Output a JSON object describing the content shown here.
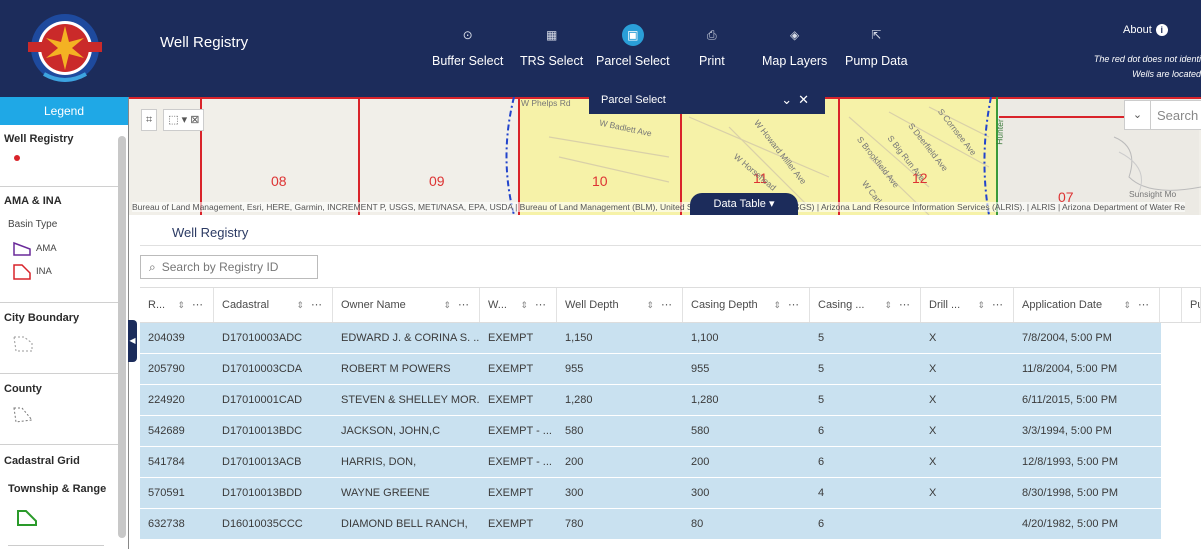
{
  "header": {
    "title": "Well Registry",
    "tools": [
      {
        "label": "Buffer Select",
        "icon": "buffer-icon",
        "glyph": "⊙"
      },
      {
        "label": "TRS Select",
        "icon": "grid-icon",
        "glyph": "▦"
      },
      {
        "label": "Parcel Select",
        "icon": "parcel-icon",
        "glyph": "▣",
        "active": true
      },
      {
        "label": "Print",
        "icon": "print-icon",
        "glyph": "⎙"
      },
      {
        "label": "Map Layers",
        "icon": "layers-icon",
        "glyph": "◈"
      },
      {
        "label": "Pump Data",
        "icon": "export-icon",
        "glyph": "⇱"
      }
    ],
    "about": "About",
    "note_line1": "The red dot does not identi",
    "note_line2": "Wells are located"
  },
  "sidebar": {
    "legend_label": "Legend",
    "sections": {
      "well_registry": "Well Registry",
      "ama_ina": "AMA & INA",
      "basin_type": "Basin Type",
      "ama": "AMA",
      "ina": "INA",
      "city_boundary": "City Boundary",
      "county": "County",
      "cadastral_grid": "Cadastral Grid",
      "township_range": "Township & Range"
    }
  },
  "map": {
    "section_numbers": [
      "08",
      "09",
      "10",
      "11",
      "12",
      "07"
    ],
    "streets": [
      "W Phelps Rd",
      "W Badlett Ave",
      "W Howard Miller Ave",
      "W Horsehead",
      "S Deerfield Ave",
      "S Big Run Ave",
      "S Brookfield Ave",
      "S Cornsee Ave",
      "W Carl",
      "Sunsight Mo",
      "Hunter"
    ],
    "search_placeholder": "Search",
    "attribution": "Bureau of Land Management, Esri, HERE, Garmin, INCREMENT P, USGS, METI/NASA, EPA, USDA | Bureau of Land Management (BLM), United States Geological Survey (USGS) | Arizona Land Resource Information Services (ALRIS). | ALRIS | Arizona Department of Water Re",
    "parcel_panel_title": "Parcel Select",
    "data_table_tab": "Data Table"
  },
  "table": {
    "title": "Well Registry",
    "search_placeholder": "Search by Registry ID",
    "columns": [
      "R...",
      "Cadastral",
      "Owner Name",
      "W...",
      "Well Depth",
      "Casing Depth",
      "Casing ...",
      "Drill ...",
      "Application Date",
      "",
      "Pu"
    ],
    "rows": [
      [
        "204039",
        "D17010003ADC",
        "EDWARD J. & CORINA S. ...",
        "EXEMPT",
        "1,150",
        "1,100",
        "5",
        "X",
        "7/8/2004, 5:00 PM"
      ],
      [
        "205790",
        "D17010003CDA",
        "ROBERT M POWERS",
        "EXEMPT",
        "955",
        "955",
        "5",
        "X",
        "11/8/2004, 5:00 PM"
      ],
      [
        "224920",
        "D17010001CAD",
        "STEVEN & SHELLEY MOR...",
        "EXEMPT",
        "1,280",
        "1,280",
        "5",
        "X",
        "6/11/2015, 5:00 PM"
      ],
      [
        "542689",
        "D17010013BDC",
        "JACKSON, JOHN,C",
        "EXEMPT - ...",
        "580",
        "580",
        "6",
        "X",
        "3/3/1994, 5:00 PM"
      ],
      [
        "541784",
        "D17010013ACB",
        "HARRIS, DON,",
        "EXEMPT - ...",
        "200",
        "200",
        "6",
        "X",
        "12/8/1993, 5:00 PM"
      ],
      [
        "570591",
        "D17010013BDD",
        "WAYNE GREENE",
        "EXEMPT",
        "300",
        "300",
        "4",
        "X",
        "8/30/1998, 5:00 PM"
      ],
      [
        "632738",
        "D16010035CCC",
        "DIAMOND BELL RANCH,",
        "EXEMPT",
        "780",
        "80",
        "6",
        "",
        "4/20/1982, 5:00 PM"
      ]
    ]
  },
  "colors": {
    "header_bg": "#1c2c5b",
    "accent": "#1fa8e6",
    "row_selected": "#c9e1f0",
    "section_line": "#d9232a"
  }
}
